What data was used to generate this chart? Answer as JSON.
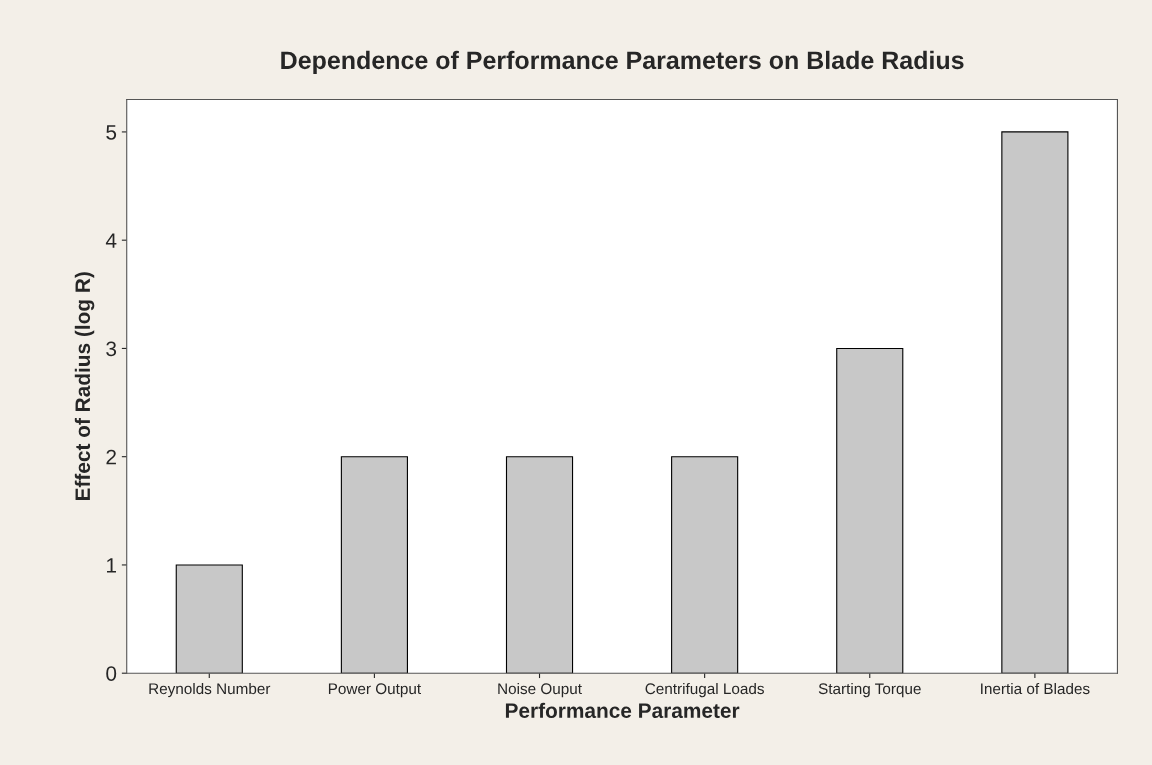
{
  "chart_data": {
    "type": "bar",
    "title": "Dependence of Performance Parameters on Blade Radius",
    "xlabel": "Performance Parameter",
    "ylabel": "Effect of Radius (log R)",
    "categories": [
      "Reynolds Number",
      "Power Output",
      "Noise Ouput",
      "Centrifugal Loads",
      "Starting Torque",
      "Inertia of Blades"
    ],
    "values": [
      1,
      2,
      2,
      2,
      3,
      5
    ],
    "color": "#c8c8c8",
    "ylim": [
      0,
      5.3
    ],
    "yticks": [
      0,
      1,
      2,
      3,
      4,
      5
    ],
    "grid": false,
    "legend": false
  }
}
